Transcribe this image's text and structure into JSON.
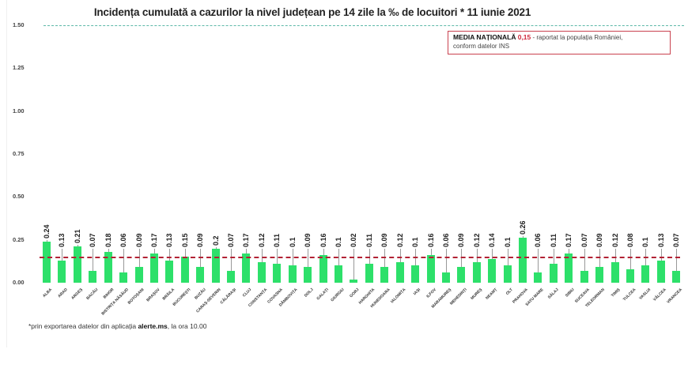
{
  "chart_data": {
    "type": "bar",
    "title": "Incidența cumulată a cazurilor la nivel județean pe 14 zile la ‰ de locuitori *  11 iunie 2021",
    "xlabel": "",
    "ylabel": "",
    "ylim": [
      0,
      1.5
    ],
    "yticks": [
      "0.00",
      "0.25",
      "0.50",
      "0.75",
      "1.00",
      "1.25",
      "1.50"
    ],
    "grid": false,
    "reference_line": {
      "value": 1.5,
      "style": "dashed",
      "color": "#5cb8a8"
    },
    "average_line": {
      "value": 0.15,
      "style": "dashed",
      "color": "#b22234"
    },
    "bar_color": "#2de06a",
    "categories": [
      "ALBA",
      "ARAD",
      "ARGEȘ",
      "BACĂU",
      "BIHOR",
      "BISTRIȚA NĂSĂUD",
      "BOTOȘANI",
      "BRAȘOV",
      "BRĂILA",
      "BUCUREȘTI",
      "BUZĂU",
      "CARAȘ-SEVERIN",
      "CĂLĂRAȘI",
      "CLUJ",
      "CONSTANȚA",
      "COVASNA",
      "DÂMBOVIȚA",
      "DOLJ",
      "GALAȚI",
      "GIURGIU",
      "GORJ",
      "HARGHITA",
      "HUNEDOARA",
      "IALOMIȚA",
      "IAȘI",
      "ILFOV",
      "MARAMUREȘ",
      "MEHEDINȚI",
      "MUREȘ",
      "NEAMȚ",
      "OLT",
      "PRAHOVA",
      "SATU MARE",
      "SĂLAJ",
      "SIBIU",
      "SUCEAVA",
      "TELEORMAN",
      "TIMIȘ",
      "TULCEA",
      "VASLUI",
      "VÂLCEA",
      "VRANCEA"
    ],
    "values": [
      0.24,
      0.13,
      0.21,
      0.07,
      0.18,
      0.06,
      0.09,
      0.17,
      0.13,
      0.15,
      0.09,
      0.2,
      0.07,
      0.17,
      0.12,
      0.11,
      0.1,
      0.09,
      0.16,
      0.1,
      0.02,
      0.11,
      0.09,
      0.12,
      0.1,
      0.16,
      0.06,
      0.09,
      0.12,
      0.14,
      0.1,
      0.26,
      0.06,
      0.11,
      0.17,
      0.07,
      0.09,
      0.12,
      0.08,
      0.1,
      0.13,
      0.07
    ],
    "value_labels": [
      "0.24",
      "0.13",
      "0.21",
      "0.07",
      "0.18",
      "0.06",
      "0.09",
      "0.17",
      "0.13",
      "0.15",
      "0.09",
      "0.2",
      "0.07",
      "0.17",
      "0.12",
      "0.11",
      "0.1",
      "0.09",
      "0.16",
      "0.1",
      "0.02",
      "0.11",
      "0.09",
      "0.12",
      "0.1",
      "0.16",
      "0.06",
      "0.09",
      "0.12",
      "0.14",
      "0.1",
      "0.26",
      "0.06",
      "0.11",
      "0.17",
      "0.07",
      "0.09",
      "0.12",
      "0.08",
      "0.1",
      "0.13",
      "0.07"
    ],
    "legend": {
      "label": "MEDIA NAȚIONALĂ",
      "value": "0,15",
      "text": " - raportat la populația României,",
      "text2": "conform datelor INS"
    },
    "footnote": {
      "prefix": "*prin exportarea datelor din aplicația ",
      "bold": "alerte.ms",
      "suffix": ", la ora 10.00"
    }
  }
}
